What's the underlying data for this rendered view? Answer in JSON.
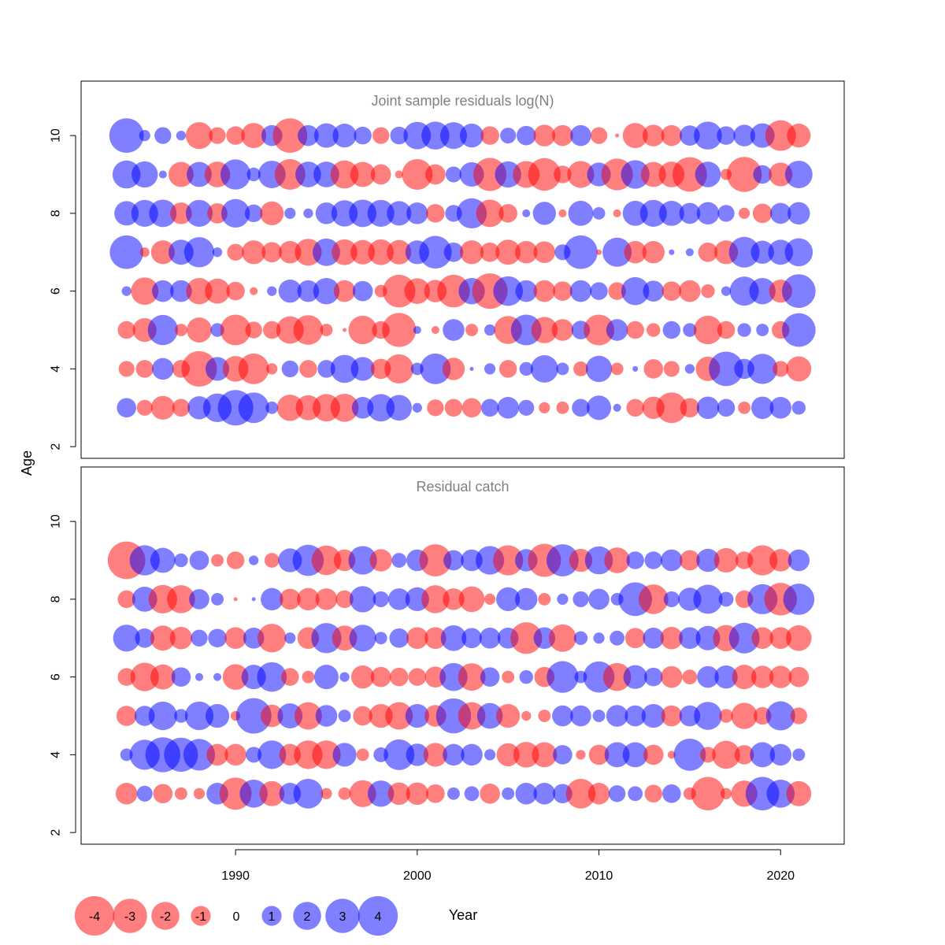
{
  "colors": {
    "negative": "#ff0000",
    "positive": "#0000ff",
    "title": "#808080",
    "text": "#000000",
    "frame": "#000000"
  },
  "chart_data": [
    {
      "type": "bubble",
      "title": "Joint sample residuals log(N)",
      "xlabel": "",
      "ylabel": "Age",
      "xlim": [
        1981.5,
        2023.5
      ],
      "ylim": [
        1.7,
        11.4
      ],
      "y_ticks": [
        "2",
        "4",
        "6",
        "8",
        "10"
      ],
      "ages": [
        3,
        4,
        5,
        6,
        7,
        8,
        9,
        10
      ],
      "years": [
        1984,
        1985,
        1986,
        1987,
        1988,
        1989,
        1990,
        1991,
        1992,
        1993,
        1994,
        1995,
        1996,
        1997,
        1998,
        1999,
        2000,
        2001,
        2002,
        2003,
        2004,
        2005,
        2006,
        2007,
        2008,
        2009,
        2010,
        2011,
        2012,
        2013,
        2014,
        2015,
        2016,
        2017,
        2018,
        2019,
        2020,
        2021
      ],
      "residuals": {
        "3": [
          1.2,
          -0.8,
          -1.8,
          -1,
          1.7,
          2.6,
          4,
          3,
          0.5,
          -2.2,
          -2,
          -2.4,
          -2.5,
          1.5,
          2.4,
          2.1,
          0.3,
          -0.9,
          -1,
          -1.2,
          1,
          1.5,
          0.8,
          -0.4,
          -0.5,
          1,
          1.9,
          0.2,
          -1,
          -1.6,
          -3,
          -1.2,
          1.6,
          1,
          -0.5,
          1.6,
          1.5,
          0.6
        ],
        "4": [
          -0.8,
          -1,
          1.5,
          -1,
          -4,
          1.8,
          -2.1,
          -3,
          -0.4,
          0.9,
          -1,
          1,
          2.5,
          1.8,
          -1.3,
          -2.7,
          0.5,
          3,
          -1.6,
          0.05,
          0.4,
          -1,
          0.6,
          2.4,
          0.5,
          -0.7,
          2.2,
          -0.5,
          0.1,
          -1.2,
          -0.8,
          0.3,
          -1.9,
          3.8,
          1.3,
          2.9,
          -0.8,
          -2
        ],
        "5": [
          -1,
          -1.8,
          2.9,
          -0.5,
          -2,
          0.6,
          -3,
          -0.9,
          -1,
          -2.4,
          -2.8,
          -0.5,
          -0.05,
          -2.6,
          -1,
          -3.7,
          0.2,
          -0.2,
          1.5,
          -0.5,
          0.4,
          -2.5,
          3,
          -2.2,
          -1.5,
          1.1,
          -3,
          1.5,
          -1,
          -0.6,
          1,
          0.6,
          -2.6,
          -1,
          0.6,
          0.5,
          -1,
          3.6
        ],
        "6": [
          0.3,
          -2.4,
          1.5,
          1.5,
          -2.2,
          -2,
          -1.1,
          -0.2,
          0.3,
          1.7,
          1.5,
          2.2,
          -1.5,
          1.3,
          -0.5,
          -3.4,
          -2.1,
          -1.6,
          -3.4,
          2.2,
          -4,
          2.8,
          1.5,
          -1.5,
          -1.2,
          1.5,
          1,
          -1,
          2.5,
          1.4,
          -1.2,
          -1.5,
          -0.6,
          0.3,
          2.7,
          2.2,
          -1.7,
          3.6
        ],
        "7": [
          3.6,
          -0.3,
          -1.8,
          2,
          2.9,
          0.3,
          -0.9,
          -1.8,
          -1.3,
          -1.6,
          -2.3,
          2.4,
          -2.1,
          -1.9,
          -2.1,
          -1.9,
          1.8,
          3.4,
          1.2,
          -1.8,
          -1.2,
          -2,
          -1.6,
          -1.5,
          0.8,
          3.6,
          -0.1,
          2.7,
          -1.6,
          -1.6,
          0.1,
          0.2,
          -1.2,
          -1.8,
          3,
          1.7,
          2,
          2.5
        ],
        "8": [
          1.9,
          2.3,
          2.4,
          -1.5,
          2.3,
          -1.3,
          2.6,
          1,
          -1.8,
          0.4,
          0.3,
          1.5,
          2.2,
          2.4,
          2.3,
          1.9,
          1.5,
          -1.1,
          0.9,
          2.9,
          -2.4,
          -1.1,
          0.2,
          1.7,
          -0.2,
          2,
          0.5,
          -0.2,
          2,
          2.3,
          2,
          1.4,
          1.6,
          0.9,
          -0.4,
          -1.2,
          1.4,
          1.6
        ],
        "9": [
          2.5,
          2.2,
          0.2,
          -2,
          2,
          -2.1,
          2.9,
          0.6,
          2.4,
          -3,
          2.1,
          2.1,
          -2.5,
          -2,
          -1.3,
          -0.2,
          -3,
          -1.3,
          0.8,
          1.9,
          -3.5,
          2.2,
          -2.3,
          -3.4,
          -1,
          -2.3,
          1.8,
          -3.2,
          2.6,
          -2,
          -2.1,
          -3.8,
          2.1,
          -0.4,
          -3.9,
          1.1,
          -1.8,
          2.4
        ],
        "10": [
          3.8,
          0.4,
          0.9,
          0.3,
          -2.3,
          -0.9,
          -1.1,
          -2,
          1.4,
          -3.8,
          1.4,
          1.9,
          1.8,
          1,
          -0.9,
          1,
          2.4,
          2.5,
          2.3,
          1.8,
          -1.1,
          0.8,
          1.2,
          -1.5,
          -1.4,
          1.4,
          -0.9,
          -0.05,
          -2,
          -1.5,
          -1.4,
          1.3,
          2.5,
          1.1,
          1.5,
          1.9,
          -3,
          -1.8
        ]
      }
    },
    {
      "type": "bubble",
      "title": "Residual catch",
      "xlabel": "Year",
      "ylabel": "Age",
      "xlim": [
        1981.5,
        2023.5
      ],
      "ylim": [
        1.7,
        11.4
      ],
      "x_ticks": [
        "1990",
        "2000",
        "2010",
        "2020"
      ],
      "y_ticks": [
        "2",
        "4",
        "6",
        "8",
        "10"
      ],
      "ages": [
        3,
        4,
        5,
        6,
        7,
        8,
        9
      ],
      "years": [
        1984,
        1985,
        1986,
        1987,
        1988,
        1989,
        1990,
        1991,
        1992,
        1993,
        1994,
        1995,
        1996,
        1997,
        1998,
        1999,
        2000,
        2001,
        2002,
        2003,
        2004,
        2005,
        2006,
        2007,
        2008,
        2009,
        2010,
        2011,
        2012,
        2013,
        2014,
        2015,
        2016,
        2017,
        2018,
        2019,
        2020,
        2021
      ],
      "residuals": {
        "3": [
          -1.5,
          0.8,
          -1.2,
          -0.5,
          -0.4,
          1.5,
          -3.3,
          2.5,
          -2,
          1.5,
          2.8,
          -0.4,
          -0.5,
          -2.3,
          2.2,
          -1.6,
          -1.6,
          -1.1,
          0.5,
          0.7,
          -1.3,
          0.5,
          1.5,
          1.5,
          1.2,
          -2.8,
          -1.5,
          0.9,
          0.7,
          -1,
          1.1,
          -0.5,
          -3.6,
          -0.4,
          -2.2,
          3.6,
          2.5,
          -2
        ],
        "4": [
          0.5,
          2.9,
          3.9,
          3.7,
          3.2,
          -1.5,
          -1.5,
          0.8,
          2.6,
          -1.5,
          -2.6,
          -2.6,
          1.8,
          -0.5,
          0.7,
          3,
          1.6,
          -1.8,
          1.5,
          1.5,
          0.4,
          -1.7,
          -2.1,
          -2,
          1.2,
          -0.3,
          -1.3,
          2,
          2,
          -1.3,
          -0.2,
          3.3,
          -0.8,
          -2.5,
          -1.2,
          2,
          1.5,
          0.5
        ],
        "5": [
          -1.3,
          1.3,
          2.6,
          0.6,
          2.6,
          1.8,
          -0.3,
          4,
          -1.6,
          2,
          -2.4,
          1.5,
          0.5,
          -1.2,
          -1.8,
          -2.4,
          1.8,
          -1.5,
          3.9,
          -2.4,
          2.1,
          -1.8,
          -0.3,
          -0.5,
          1.4,
          1.4,
          0.5,
          1.5,
          1.4,
          1.8,
          -1.4,
          1.4,
          2.5,
          -0.6,
          -2.2,
          -1,
          2.7,
          -0.9
        ],
        "6": [
          -1,
          -2.6,
          -2,
          1.2,
          0.2,
          0.2,
          -2.1,
          1.9,
          2.8,
          -1,
          -0.5,
          1.9,
          0.3,
          -1.7,
          -1.3,
          -1.1,
          -1,
          -1.4,
          2.5,
          -2.4,
          1.2,
          -0.5,
          0.6,
          -1.3,
          3.2,
          0.5,
          3.1,
          -2.5,
          1.8,
          1.1,
          -1.5,
          -0.7,
          1.5,
          1.7,
          -1.9,
          -1.6,
          -1.6,
          -1.3
        ],
        "7": [
          2.3,
          1.2,
          -2,
          -1.6,
          0.9,
          1.1,
          -1.5,
          1.4,
          -2.6,
          0.4,
          -1.5,
          2.9,
          -2,
          2.3,
          0.5,
          1.2,
          -1.5,
          -1.5,
          2.1,
          1.3,
          1.4,
          1.4,
          -3.2,
          1.5,
          -2.4,
          0.6,
          0.4,
          0.7,
          -1.3,
          1.4,
          -1.6,
          1.5,
          1.9,
          -2.2,
          3,
          -1.5,
          -1.5,
          -2.1
        ],
        "8": [
          -1,
          2,
          -2.6,
          -2.5,
          1.3,
          0.5,
          -0.05,
          0.05,
          1.6,
          -1.4,
          -1.6,
          -1.5,
          -1,
          2.2,
          0.8,
          1.5,
          1.8,
          -2.5,
          -1.5,
          -2.1,
          -0.4,
          1.8,
          1.6,
          -0.5,
          0.4,
          0.8,
          1.4,
          0.5,
          3.6,
          -2.8,
          0.8,
          1.7,
          2.7,
          0.7,
          -1,
          2.9,
          -3.4,
          3.1
        ],
        "9": [
          -4.5,
          2.9,
          2,
          0.6,
          1.2,
          -0.5,
          -1,
          0.3,
          -0.7,
          1.8,
          3.1,
          -2.8,
          -1.5,
          2.6,
          -1.6,
          0.7,
          1.5,
          -3.3,
          1.3,
          1.5,
          2.6,
          -2.9,
          1.6,
          -3.5,
          3.3,
          -1.7,
          2.5,
          -2.1,
          1,
          1,
          1.5,
          -1.3,
          1.7,
          -1.9,
          -1,
          -2.9,
          -1.6,
          1.5
        ]
      }
    }
  ],
  "legend": {
    "xlabel": "Year",
    "items": [
      "-4",
      "-3",
      "-2",
      "-1",
      "0",
      "1",
      "2",
      "3",
      "4"
    ]
  }
}
